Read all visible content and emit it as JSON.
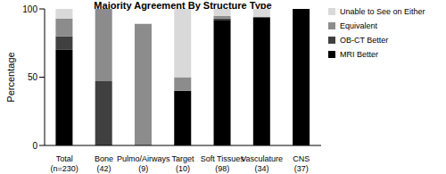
{
  "chart_data": {
    "type": "bar",
    "title": "Majority Agreement By Structure Type",
    "y_label": "Percentage",
    "categories": [
      "Total (n=230)",
      "Bone (42)",
      "Pulmo/Airways (9)",
      "Target (10)",
      "Soft Tissues (98)",
      "Vasculature (34)",
      "CNS (37)"
    ],
    "series": [
      {
        "name": "MRI Better",
        "color": "#000000",
        "values": [
          70,
          0,
          0,
          40,
          92,
          94,
          100
        ]
      },
      {
        "name": "OB-CT Better",
        "color": "#404040",
        "values": [
          10,
          47,
          0,
          0,
          1,
          0,
          0
        ]
      },
      {
        "name": "Equivalent",
        "color": "#8c8c8c",
        "values": [
          13,
          53,
          89,
          10,
          2,
          0,
          0
        ]
      },
      {
        "name": "Unable to See on Either",
        "color": "#d9d9d9",
        "values": [
          7,
          0,
          0,
          50,
          5,
          6,
          0
        ]
      }
    ],
    "ylim": [
      0,
      100
    ],
    "yticks": [
      0,
      50,
      100
    ],
    "stacked": true,
    "legend": "right",
    "grid": false
  }
}
